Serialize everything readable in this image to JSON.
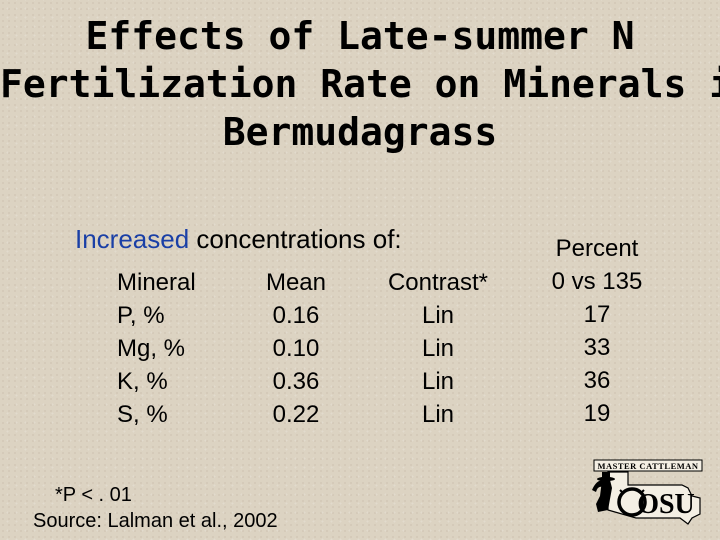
{
  "title": {
    "line1": "Effects of Late-summer N",
    "line2": "Fertilization Rate on Minerals in",
    "line3": "Bermudagrass"
  },
  "subhead": {
    "highlight": "Increased",
    "rest": " concentrations of:"
  },
  "table": {
    "headers": {
      "mineral": "Mineral",
      "mean": "Mean",
      "contrast": "Contrast*",
      "percent_line1": "Percent",
      "percent_line2": "0 vs 135"
    },
    "rows": [
      {
        "mineral": "P, %",
        "mean": "0.16",
        "contrast": "Lin",
        "percent": "17"
      },
      {
        "mineral": "Mg, %",
        "mean": "0.10",
        "contrast": "Lin",
        "percent": "33"
      },
      {
        "mineral": "K, %",
        "mean": "0.36",
        "contrast": "Lin",
        "percent": "36"
      },
      {
        "mineral": "S, %",
        "mean": "0.22",
        "contrast": "Lin",
        "percent": "19"
      }
    ]
  },
  "footnote": "*P < . 01",
  "source": "Source: Lalman et al., 2002",
  "logo": {
    "banner": "MASTER CATTLEMAN",
    "text": "OSU",
    "icon": "cowboy-steer-logo-icon"
  },
  "colors": {
    "highlight": "#1a3fa6",
    "background": "#dcd3c2"
  }
}
